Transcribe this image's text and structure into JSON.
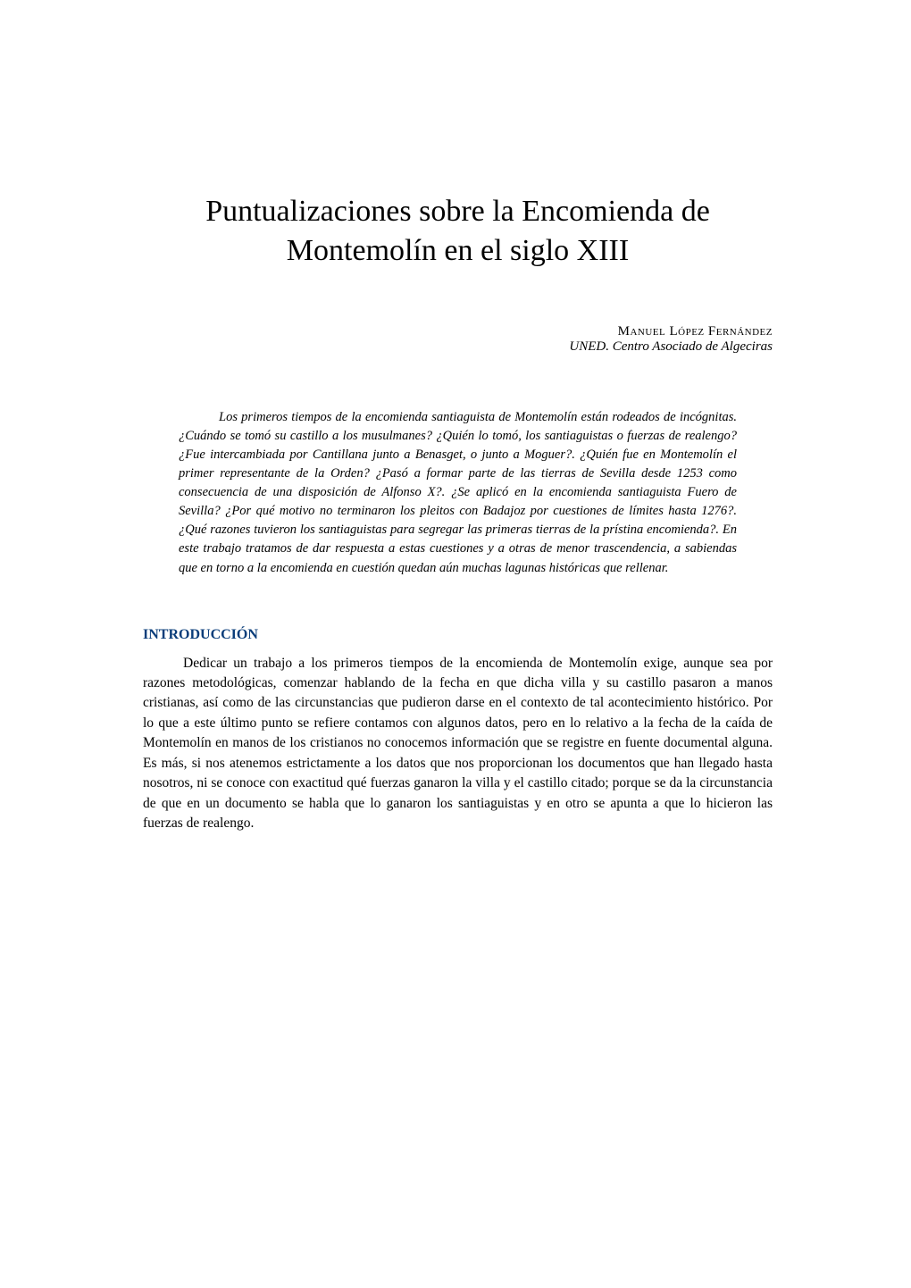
{
  "title": "Puntualizaciones sobre la Encomienda de Montemolín en el siglo XIII",
  "author": {
    "name": "Manuel López Fernández",
    "affiliation": "UNED. Centro Asociado de Algeciras"
  },
  "abstract": "Los primeros tiempos de la encomienda santiaguista de Montemolín están rodeados de incógnitas. ¿Cuándo se tomó su castillo a los musulmanes? ¿Quién lo tomó, los santiaguistas o fuerzas de realengo? ¿Fue intercambiada por Cantillana junto a Benasget, o junto a Moguer?. ¿Quién fue en Montemolín el primer representante de la Orden? ¿Pasó a formar parte de las tierras de Sevilla desde 1253 como consecuencia de una disposición de Alfonso X?. ¿Se aplicó en la encomienda santiaguista Fuero de Sevilla? ¿Por qué motivo no terminaron los pleitos con Badajoz por cuestiones de límites hasta 1276?. ¿Qué razones tuvieron los santiaguistas para segregar las primeras tierras de la prístina encomienda?. En este trabajo tratamos de dar respuesta a estas cuestiones y a otras de menor trascendencia, a sabiendas que en torno a la encomienda en cuestión quedan aún muchas lagunas históricas que rellenar.",
  "section_heading": "INTRODUCCIÓN",
  "body": "Dedicar un trabajo a los primeros tiempos de la encomienda de Montemolín exige, aunque sea por razones metodológicas, comenzar hablando de la fecha en que dicha villa y su castillo pasaron a manos cristianas, así como de las circunstancias que pudieron darse en el contexto de tal acontecimiento histórico. Por lo que a este último punto se refiere contamos con algunos datos, pero en lo relativo a la fecha de la caída de Montemolín en manos de los cristianos no conocemos información que se registre en fuente documental alguna. Es más, si nos atenemos estrictamente a los datos que nos proporcionan los documentos que han llegado hasta nosotros, ni se conoce con exactitud qué fuerzas ganaron la villa y el castillo citado; porque se da la circunstancia de que en un documento se habla que lo ganaron los santiaguistas y en otro se apunta a que lo hicieron las fuerzas de realengo.",
  "colors": {
    "background": "#ffffff",
    "text": "#000000",
    "heading": "#0a3d7a"
  },
  "typography": {
    "title_fontsize": 34,
    "author_fontsize": 15,
    "abstract_fontsize": 14.5,
    "heading_fontsize": 16,
    "body_fontsize": 15.5,
    "font_family": "Georgia, Times New Roman, serif"
  }
}
